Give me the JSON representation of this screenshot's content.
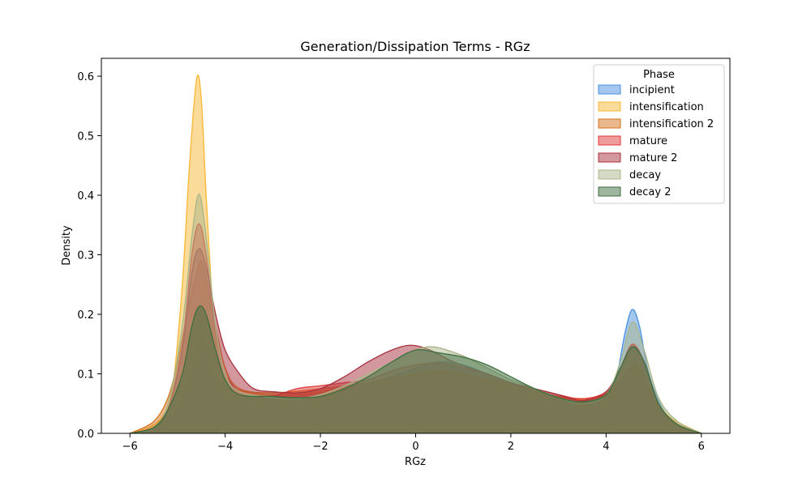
{
  "chart_data": {
    "type": "area",
    "title": "Generation/Dissipation Terms - RGz",
    "xlabel": "RGz",
    "ylabel": "Density",
    "xlim": [
      -6.6,
      6.6
    ],
    "ylim": [
      0,
      0.63
    ],
    "xticks": [
      -6,
      -4,
      -2,
      0,
      2,
      4,
      6
    ],
    "xtick_labels": [
      "−6",
      "−4",
      "−2",
      "0",
      "2",
      "4",
      "6"
    ],
    "yticks": [
      0.0,
      0.1,
      0.2,
      0.3,
      0.4,
      0.5,
      0.6
    ],
    "ytick_labels": [
      "0.0",
      "0.1",
      "0.2",
      "0.3",
      "0.4",
      "0.5",
      "0.6"
    ],
    "grid": false,
    "legend": {
      "title": "Phase",
      "placement": "top-right"
    },
    "series": [
      {
        "name": "incipient",
        "color": "#4a90e2",
        "points": [
          [
            -6.0,
            0.0
          ],
          [
            -5.5,
            0.008
          ],
          [
            -5.0,
            0.04
          ],
          [
            -4.8,
            0.09
          ],
          [
            -4.6,
            0.15
          ],
          [
            -4.5,
            0.17
          ],
          [
            -4.4,
            0.15
          ],
          [
            -4.2,
            0.1
          ],
          [
            -4.0,
            0.07
          ],
          [
            -3.5,
            0.062
          ],
          [
            -3.0,
            0.063
          ],
          [
            -2.5,
            0.066
          ],
          [
            -2.0,
            0.07
          ],
          [
            -1.5,
            0.078
          ],
          [
            -1.0,
            0.085
          ],
          [
            -0.5,
            0.095
          ],
          [
            0.0,
            0.11
          ],
          [
            0.5,
            0.12
          ],
          [
            1.0,
            0.115
          ],
          [
            1.5,
            0.1
          ],
          [
            2.0,
            0.085
          ],
          [
            2.5,
            0.07
          ],
          [
            3.0,
            0.058
          ],
          [
            3.5,
            0.048
          ],
          [
            3.9,
            0.05
          ],
          [
            4.2,
            0.09
          ],
          [
            4.4,
            0.17
          ],
          [
            4.55,
            0.208
          ],
          [
            4.7,
            0.18
          ],
          [
            4.9,
            0.1
          ],
          [
            5.2,
            0.04
          ],
          [
            5.5,
            0.015
          ],
          [
            6.0,
            0.0
          ]
        ]
      },
      {
        "name": "intensification",
        "color": "#f7b733",
        "points": [
          [
            -6.0,
            0.0
          ],
          [
            -5.6,
            0.01
          ],
          [
            -5.3,
            0.03
          ],
          [
            -5.1,
            0.08
          ],
          [
            -4.9,
            0.25
          ],
          [
            -4.75,
            0.45
          ],
          [
            -4.6,
            0.595
          ],
          [
            -4.5,
            0.56
          ],
          [
            -4.4,
            0.4
          ],
          [
            -4.25,
            0.2
          ],
          [
            -4.1,
            0.1
          ],
          [
            -3.8,
            0.075
          ],
          [
            -3.0,
            0.065
          ],
          [
            -2.0,
            0.07
          ],
          [
            -1.0,
            0.085
          ],
          [
            0.0,
            0.1
          ],
          [
            0.5,
            0.105
          ],
          [
            1.0,
            0.1
          ],
          [
            2.0,
            0.08
          ],
          [
            3.0,
            0.06
          ],
          [
            3.8,
            0.06
          ],
          [
            4.2,
            0.085
          ],
          [
            4.5,
            0.13
          ],
          [
            4.65,
            0.13
          ],
          [
            4.9,
            0.08
          ],
          [
            5.3,
            0.03
          ],
          [
            6.0,
            0.0
          ]
        ]
      },
      {
        "name": "intensification 2",
        "color": "#d4731c",
        "points": [
          [
            -6.0,
            0.0
          ],
          [
            -5.5,
            0.02
          ],
          [
            -5.2,
            0.06
          ],
          [
            -5.0,
            0.12
          ],
          [
            -4.8,
            0.2
          ],
          [
            -4.6,
            0.27
          ],
          [
            -4.5,
            0.29
          ],
          [
            -4.4,
            0.26
          ],
          [
            -4.2,
            0.18
          ],
          [
            -4.0,
            0.11
          ],
          [
            -3.7,
            0.075
          ],
          [
            -3.0,
            0.068
          ],
          [
            -2.0,
            0.075
          ],
          [
            -1.0,
            0.085
          ],
          [
            0.0,
            0.1
          ],
          [
            0.5,
            0.105
          ],
          [
            1.0,
            0.1
          ],
          [
            2.0,
            0.082
          ],
          [
            3.0,
            0.062
          ],
          [
            3.8,
            0.06
          ],
          [
            4.2,
            0.08
          ],
          [
            4.5,
            0.11
          ],
          [
            4.7,
            0.11
          ],
          [
            5.0,
            0.06
          ],
          [
            5.4,
            0.02
          ],
          [
            6.0,
            0.0
          ]
        ]
      },
      {
        "name": "mature",
        "color": "#e03a3a",
        "points": [
          [
            -6.0,
            0.0
          ],
          [
            -5.5,
            0.01
          ],
          [
            -5.2,
            0.04
          ],
          [
            -4.9,
            0.15
          ],
          [
            -4.7,
            0.3
          ],
          [
            -4.55,
            0.352
          ],
          [
            -4.4,
            0.3
          ],
          [
            -4.2,
            0.17
          ],
          [
            -4.0,
            0.1
          ],
          [
            -3.6,
            0.065
          ],
          [
            -3.0,
            0.063
          ],
          [
            -2.5,
            0.075
          ],
          [
            -2.0,
            0.08
          ],
          [
            -1.5,
            0.085
          ],
          [
            -1.0,
            0.09
          ],
          [
            -0.5,
            0.105
          ],
          [
            0.0,
            0.115
          ],
          [
            0.5,
            0.118
          ],
          [
            1.0,
            0.11
          ],
          [
            1.5,
            0.1
          ],
          [
            2.0,
            0.085
          ],
          [
            2.5,
            0.075
          ],
          [
            3.0,
            0.065
          ],
          [
            3.5,
            0.058
          ],
          [
            4.0,
            0.07
          ],
          [
            4.3,
            0.11
          ],
          [
            4.55,
            0.15
          ],
          [
            4.8,
            0.12
          ],
          [
            5.1,
            0.05
          ],
          [
            5.5,
            0.015
          ],
          [
            6.0,
            0.0
          ]
        ]
      },
      {
        "name": "mature 2",
        "color": "#a8323e",
        "points": [
          [
            -6.0,
            0.0
          ],
          [
            -5.5,
            0.01
          ],
          [
            -5.2,
            0.04
          ],
          [
            -4.9,
            0.14
          ],
          [
            -4.7,
            0.27
          ],
          [
            -4.55,
            0.31
          ],
          [
            -4.4,
            0.28
          ],
          [
            -4.2,
            0.2
          ],
          [
            -4.0,
            0.14
          ],
          [
            -3.7,
            0.1
          ],
          [
            -3.4,
            0.075
          ],
          [
            -3.0,
            0.07
          ],
          [
            -2.5,
            0.068
          ],
          [
            -2.0,
            0.075
          ],
          [
            -1.5,
            0.095
          ],
          [
            -1.0,
            0.12
          ],
          [
            -0.5,
            0.14
          ],
          [
            -0.1,
            0.148
          ],
          [
            0.3,
            0.14
          ],
          [
            0.8,
            0.12
          ],
          [
            1.5,
            0.1
          ],
          [
            2.0,
            0.085
          ],
          [
            2.5,
            0.075
          ],
          [
            3.0,
            0.065
          ],
          [
            3.5,
            0.055
          ],
          [
            4.0,
            0.07
          ],
          [
            4.3,
            0.11
          ],
          [
            4.55,
            0.148
          ],
          [
            4.8,
            0.12
          ],
          [
            5.1,
            0.05
          ],
          [
            5.5,
            0.015
          ],
          [
            6.0,
            0.0
          ]
        ]
      },
      {
        "name": "decay",
        "color": "#a9b58a",
        "points": [
          [
            -6.0,
            0.0
          ],
          [
            -5.5,
            0.01
          ],
          [
            -5.2,
            0.05
          ],
          [
            -4.9,
            0.18
          ],
          [
            -4.7,
            0.33
          ],
          [
            -4.55,
            0.402
          ],
          [
            -4.4,
            0.33
          ],
          [
            -4.2,
            0.18
          ],
          [
            -4.0,
            0.1
          ],
          [
            -3.7,
            0.07
          ],
          [
            -3.0,
            0.06
          ],
          [
            -2.5,
            0.058
          ],
          [
            -2.0,
            0.065
          ],
          [
            -1.5,
            0.08
          ],
          [
            -1.0,
            0.1
          ],
          [
            -0.5,
            0.12
          ],
          [
            0.0,
            0.14
          ],
          [
            0.4,
            0.145
          ],
          [
            1.0,
            0.13
          ],
          [
            1.5,
            0.11
          ],
          [
            2.0,
            0.09
          ],
          [
            2.5,
            0.075
          ],
          [
            3.0,
            0.06
          ],
          [
            3.5,
            0.05
          ],
          [
            4.0,
            0.065
          ],
          [
            4.3,
            0.12
          ],
          [
            4.55,
            0.187
          ],
          [
            4.8,
            0.14
          ],
          [
            5.1,
            0.06
          ],
          [
            5.5,
            0.02
          ],
          [
            6.0,
            0.0
          ]
        ]
      },
      {
        "name": "decay 2",
        "color": "#3d6e3f",
        "points": [
          [
            -6.0,
            0.0
          ],
          [
            -5.5,
            0.01
          ],
          [
            -5.2,
            0.04
          ],
          [
            -4.9,
            0.1
          ],
          [
            -4.7,
            0.18
          ],
          [
            -4.55,
            0.213
          ],
          [
            -4.4,
            0.2
          ],
          [
            -4.2,
            0.14
          ],
          [
            -4.0,
            0.09
          ],
          [
            -3.7,
            0.065
          ],
          [
            -3.0,
            0.062
          ],
          [
            -2.5,
            0.06
          ],
          [
            -2.0,
            0.062
          ],
          [
            -1.5,
            0.075
          ],
          [
            -1.0,
            0.095
          ],
          [
            -0.5,
            0.12
          ],
          [
            0.0,
            0.14
          ],
          [
            0.5,
            0.135
          ],
          [
            1.0,
            0.128
          ],
          [
            1.5,
            0.115
          ],
          [
            2.0,
            0.095
          ],
          [
            2.5,
            0.075
          ],
          [
            3.0,
            0.06
          ],
          [
            3.5,
            0.053
          ],
          [
            4.0,
            0.065
          ],
          [
            4.3,
            0.11
          ],
          [
            4.55,
            0.145
          ],
          [
            4.8,
            0.12
          ],
          [
            5.1,
            0.05
          ],
          [
            5.5,
            0.015
          ],
          [
            6.0,
            0.0
          ]
        ]
      }
    ]
  }
}
